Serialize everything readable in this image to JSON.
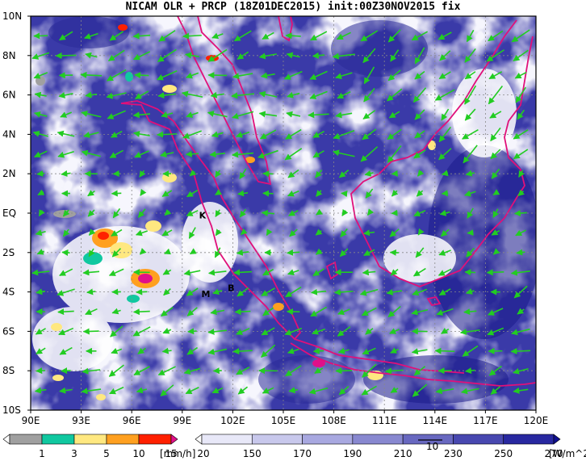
{
  "title": "NICAM OLR + PRCP (18Z01DEC2015) init:00Z30NOV2015 fix",
  "lat_labels": [
    "10N",
    "8N",
    "6N",
    "4N",
    "2N",
    "EQ",
    "2S",
    "4S",
    "6S",
    "8S",
    "10S"
  ],
  "lon_labels": [
    "90E",
    "93E",
    "96E",
    "99E",
    "102E",
    "105E",
    "108E",
    "111E",
    "114E",
    "117E",
    "120E"
  ],
  "stations": [
    {
      "id": "K",
      "lon": 100.2,
      "lat": -0.1
    },
    {
      "id": "M",
      "lon": 100.4,
      "lat": -4.1
    },
    {
      "id": "B",
      "lon": 101.9,
      "lat": -3.8
    }
  ],
  "precip_colorbar": {
    "unit": "[mm/h]",
    "levels": [
      "1",
      "3",
      "5",
      "10",
      "15",
      "20"
    ],
    "colors": [
      "#ffffff",
      "#a0a0a0",
      "#10c8a0",
      "#ffe880",
      "#ffa020",
      "#ff2000",
      "#e0108a"
    ]
  },
  "olr_colorbar": {
    "unit": "[W/m^2]",
    "levels": [
      "150",
      "170",
      "190",
      "210",
      "230",
      "250",
      "270",
      "290"
    ],
    "colors": [
      "#ffffff",
      "#e8e8f8",
      "#c8c8ec",
      "#a8a8e0",
      "#8888d0",
      "#6868c0",
      "#4848b0",
      "#2828a0",
      "#101090"
    ]
  },
  "vector_reference": "10",
  "colors": {
    "coast": "#e0107a",
    "vector": "#22cc22",
    "land_fill": "#4040b0"
  }
}
